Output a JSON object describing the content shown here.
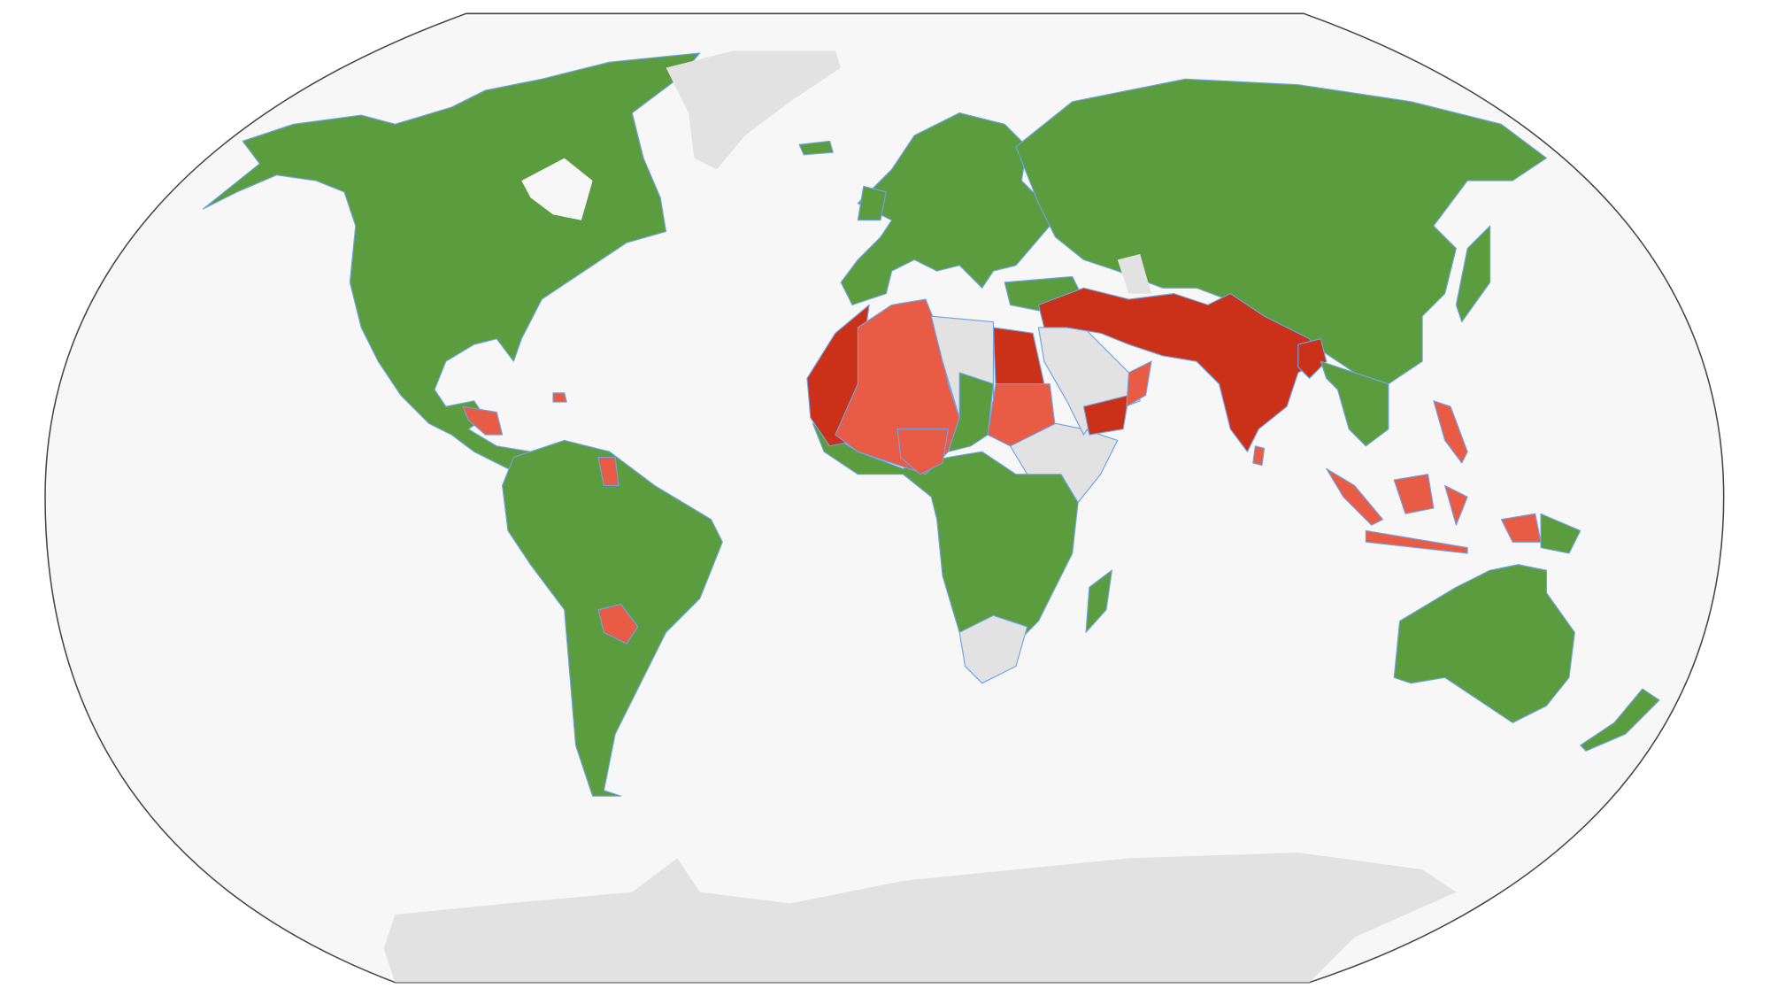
{
  "map": {
    "projection": "Winkel tripel",
    "colors": {
      "ocean": "#f7f7f7",
      "frame": "#444444",
      "border": "#6fa3e6",
      "green": "#5a9c3e",
      "dark_red": "#cb3118",
      "light_red": "#e85c45",
      "no_data": "#e2e2e2"
    },
    "regions": [
      {
        "id": "north-america",
        "category": "green"
      },
      {
        "id": "hudson-bay",
        "category": "ocean"
      },
      {
        "id": "greenland",
        "category": "no_data"
      },
      {
        "id": "central-america-red",
        "category": "light_red"
      },
      {
        "id": "haiti",
        "category": "light_red"
      },
      {
        "id": "south-america",
        "category": "green"
      },
      {
        "id": "paraguay",
        "category": "light_red"
      },
      {
        "id": "guyana",
        "category": "light_red"
      },
      {
        "id": "europe",
        "category": "green"
      },
      {
        "id": "uk",
        "category": "green"
      },
      {
        "id": "iceland",
        "category": "green"
      },
      {
        "id": "russia-asia",
        "category": "green"
      },
      {
        "id": "japan",
        "category": "green"
      },
      {
        "id": "turkey",
        "category": "green"
      },
      {
        "id": "caspian",
        "category": "no_data"
      },
      {
        "id": "morocco-mauritania",
        "category": "dark_red"
      },
      {
        "id": "algeria-mali-niger",
        "category": "light_red"
      },
      {
        "id": "libya",
        "category": "no_data"
      },
      {
        "id": "egypt",
        "category": "dark_red"
      },
      {
        "id": "sudan",
        "category": "light_red"
      },
      {
        "id": "chad",
        "category": "green"
      },
      {
        "id": "sub-saharan-africa",
        "category": "green"
      },
      {
        "id": "nigeria",
        "category": "light_red"
      },
      {
        "id": "horn-of-africa",
        "category": "no_data"
      },
      {
        "id": "southern-africa",
        "category": "no_data"
      },
      {
        "id": "madagascar",
        "category": "green"
      },
      {
        "id": "arabia",
        "category": "no_data"
      },
      {
        "id": "yemen",
        "category": "dark_red"
      },
      {
        "id": "oman",
        "category": "light_red"
      },
      {
        "id": "iran-pakistan-india",
        "category": "dark_red"
      },
      {
        "id": "bangladesh-myanmar",
        "category": "dark_red"
      },
      {
        "id": "sri-lanka",
        "category": "light_red"
      },
      {
        "id": "southeast-asia",
        "category": "green"
      },
      {
        "id": "sumatra",
        "category": "light_red"
      },
      {
        "id": "borneo",
        "category": "light_red"
      },
      {
        "id": "java",
        "category": "light_red"
      },
      {
        "id": "philippines",
        "category": "light_red"
      },
      {
        "id": "sulawesi",
        "category": "light_red"
      },
      {
        "id": "west-papua",
        "category": "light_red"
      },
      {
        "id": "papua-new-guinea",
        "category": "green"
      },
      {
        "id": "australia",
        "category": "green"
      },
      {
        "id": "new-zealand",
        "category": "green"
      },
      {
        "id": "antarctica",
        "category": "no_data"
      }
    ]
  }
}
